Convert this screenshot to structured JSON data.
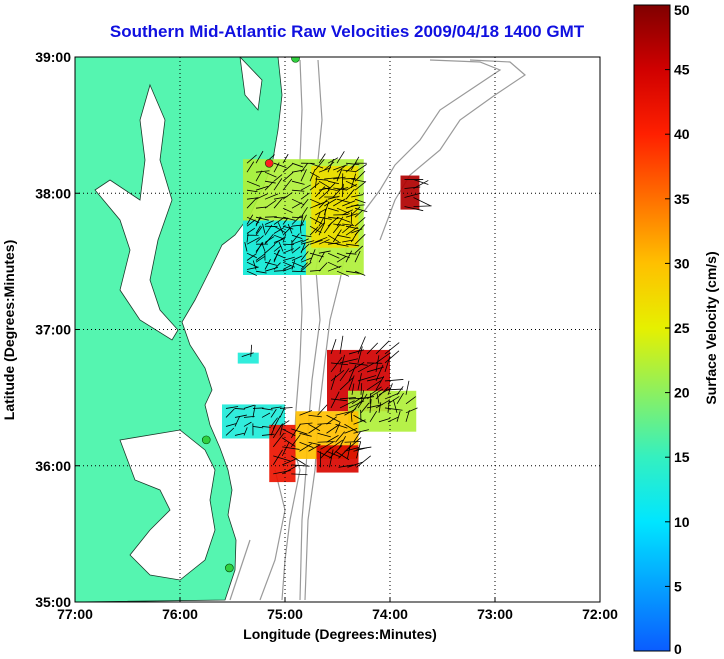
{
  "title": "Southern Mid-Atlantic Raw Velocities 2009/04/18 1400 GMT",
  "map": {
    "xlabel": "Longitude (Degrees:Minutes)",
    "ylabel": "Latitude (Degrees:Minutes)",
    "lon_range": [
      -77,
      -72
    ],
    "lat_range": [
      35,
      39
    ],
    "x_ticks": [
      {
        "value": -77,
        "label": "77:00"
      },
      {
        "value": -76,
        "label": "76:00"
      },
      {
        "value": -75,
        "label": "75:00"
      },
      {
        "value": -74,
        "label": "74:00"
      },
      {
        "value": -73,
        "label": "73:00"
      },
      {
        "value": -72,
        "label": "72:00"
      }
    ],
    "y_ticks": [
      {
        "value": 35,
        "label": "35:00"
      },
      {
        "value": 36,
        "label": "36:00"
      },
      {
        "value": 37,
        "label": "37:00"
      },
      {
        "value": 38,
        "label": "38:00"
      },
      {
        "value": 39,
        "label": "39:00"
      }
    ],
    "grid": "dotted",
    "land_color": "#55f5b0",
    "stations": [
      {
        "lon": -74.9,
        "lat": 38.99,
        "color": "#30d040"
      },
      {
        "lon": -75.15,
        "lat": 38.22,
        "color": "#ff2020"
      },
      {
        "lon": -75.75,
        "lat": 36.19,
        "color": "#30d040"
      },
      {
        "lon": -75.53,
        "lat": 35.25,
        "color": "#30d040"
      }
    ]
  },
  "colorbar": {
    "label": "Surface Velocity (cm/s)",
    "min": 0,
    "max": 50,
    "ticks": [
      {
        "value": 0,
        "label": "0"
      },
      {
        "value": 5,
        "label": "5"
      },
      {
        "value": 10,
        "label": "10"
      },
      {
        "value": 15,
        "label": "15"
      },
      {
        "value": 20,
        "label": "20"
      },
      {
        "value": 25,
        "label": "25"
      },
      {
        "value": 30,
        "label": "30"
      },
      {
        "value": 35,
        "label": "35"
      },
      {
        "value": 40,
        "label": "40"
      },
      {
        "value": 45,
        "label": "45"
      },
      {
        "value": 50,
        "label": "50"
      }
    ]
  },
  "velocity_regions": [
    {
      "lon": [
        -75.4,
        -74.25
      ],
      "lat": [
        37.4,
        38.25
      ],
      "speed": 22
    },
    {
      "lon": [
        -74.75,
        -74.3
      ],
      "lat": [
        37.6,
        38.2
      ],
      "speed": 27
    },
    {
      "lon": [
        -75.4,
        -74.8
      ],
      "lat": [
        37.4,
        37.8
      ],
      "speed": 12
    },
    {
      "lon": [
        -73.9,
        -73.72
      ],
      "lat": [
        37.88,
        38.13
      ],
      "speed": 47
    },
    {
      "lon": [
        -75.6,
        -75.0
      ],
      "lat": [
        36.2,
        36.45
      ],
      "speed": 13
    },
    {
      "lon": [
        -75.45,
        -75.25
      ],
      "lat": [
        36.75,
        36.83
      ],
      "speed": 13
    },
    {
      "lon": [
        -75.15,
        -74.9
      ],
      "lat": [
        35.88,
        36.3
      ],
      "speed": 42
    },
    {
      "lon": [
        -74.6,
        -74.0
      ],
      "lat": [
        36.4,
        36.85
      ],
      "speed": 45
    },
    {
      "lon": [
        -74.4,
        -73.75
      ],
      "lat": [
        36.25,
        36.55
      ],
      "speed": 22
    },
    {
      "lon": [
        -74.9,
        -74.3
      ],
      "lat": [
        36.05,
        36.4
      ],
      "speed": 30
    },
    {
      "lon": [
        -74.7,
        -74.3
      ],
      "lat": [
        35.95,
        36.15
      ],
      "speed": 44
    }
  ]
}
